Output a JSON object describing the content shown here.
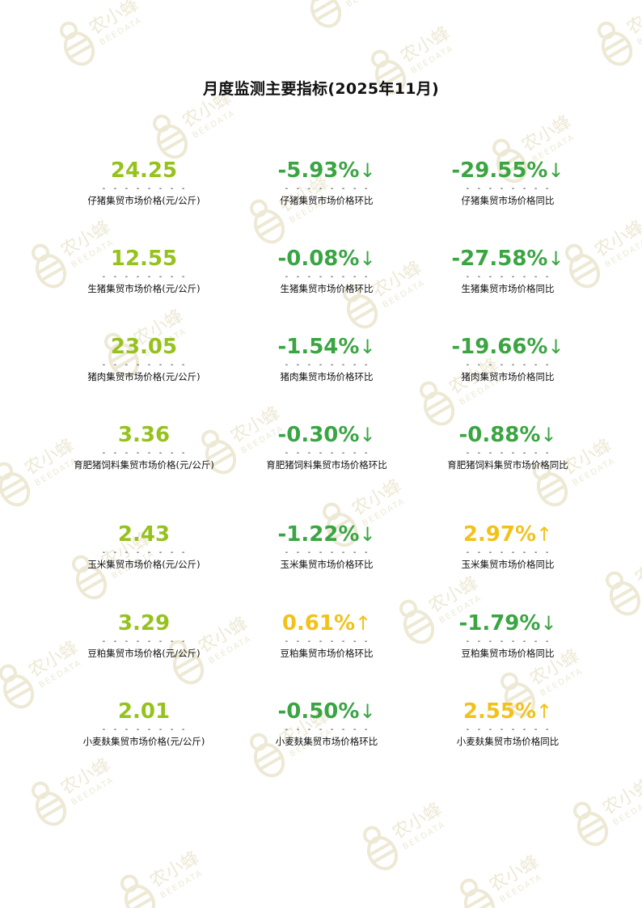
{
  "title": "月度监测主要指标(2025年11月)",
  "watermark": {
    "brand": "农小蜂",
    "sub": "BEEDATA",
    "color": "#e7e2c8"
  },
  "colors": {
    "price": "#96c21e",
    "down": "#3aa542",
    "up": "#f2c21a"
  },
  "dash_text": "- - - - - - - -",
  "rows": [
    {
      "price": {
        "value": "24.25",
        "label": "仔猪集贸市场价格(元/公斤)"
      },
      "mom": {
        "value": "-5.93%",
        "arrow": "↓",
        "trend": "down",
        "label": "仔猪集贸市场价格环比"
      },
      "yoy": {
        "value": "-29.55%",
        "arrow": "↓",
        "trend": "down",
        "label": "仔猪集贸市场价格同比"
      }
    },
    {
      "price": {
        "value": "12.55",
        "label": "生猪集贸市场价格(元/公斤)"
      },
      "mom": {
        "value": "-0.08%",
        "arrow": "↓",
        "trend": "down",
        "label": "生猪集贸市场价格环比"
      },
      "yoy": {
        "value": "-27.58%",
        "arrow": "↓",
        "trend": "down",
        "label": "生猪集贸市场价格同比"
      }
    },
    {
      "price": {
        "value": "23.05",
        "label": "猪肉集贸市场价格(元/公斤)"
      },
      "mom": {
        "value": "-1.54%",
        "arrow": "↓",
        "trend": "down",
        "label": "猪肉集贸市场价格环比"
      },
      "yoy": {
        "value": "-19.66%",
        "arrow": "↓",
        "trend": "down",
        "label": "猪肉集贸市场价格同比"
      }
    },
    {
      "price": {
        "value": "3.36",
        "label": "育肥猪饲料集贸市场价格(元/公斤)"
      },
      "mom": {
        "value": "-0.30%",
        "arrow": "↓",
        "trend": "down",
        "label": "育肥猪饲料集贸市场价格环比"
      },
      "yoy": {
        "value": "-0.88%",
        "arrow": "↓",
        "trend": "down",
        "label": "育肥猪饲料集贸市场价格同比"
      }
    },
    {
      "price": {
        "value": "2.43",
        "label": "玉米集贸市场价格(元/公斤)"
      },
      "mom": {
        "value": "-1.22%",
        "arrow": "↓",
        "trend": "down",
        "label": "玉米集贸市场价格环比"
      },
      "yoy": {
        "value": "2.97%",
        "arrow": "↑",
        "trend": "up",
        "label": "玉米集贸市场价格同比"
      }
    },
    {
      "price": {
        "value": "3.29",
        "label": "豆粕集贸市场价格(元/公斤)"
      },
      "mom": {
        "value": "0.61%",
        "arrow": "↑",
        "trend": "up",
        "label": "豆粕集贸市场价格环比"
      },
      "yoy": {
        "value": "-1.79%",
        "arrow": "↓",
        "trend": "down",
        "label": "豆粕集贸市场价格同比"
      }
    },
    {
      "price": {
        "value": "2.01",
        "label": "小麦麸集贸市场价格(元/公斤)"
      },
      "mom": {
        "value": "-0.50%",
        "arrow": "↓",
        "trend": "down",
        "label": "小麦麸集贸市场价格环比"
      },
      "yoy": {
        "value": "2.55%",
        "arrow": "↑",
        "trend": "up",
        "label": "小麦麸集贸市场价格同比"
      }
    }
  ]
}
